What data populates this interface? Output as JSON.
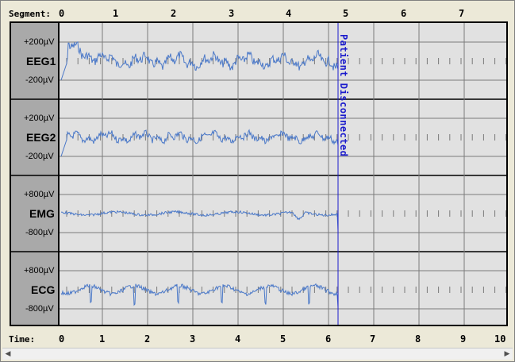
{
  "header": {
    "segment_label": "Segment:",
    "segment_ticks": [
      "0",
      "1",
      "2",
      "3",
      "4",
      "5",
      "6",
      "7"
    ]
  },
  "footer": {
    "time_label": "Time:",
    "time_ticks": [
      "0",
      "1",
      "2",
      "3",
      "4",
      "5",
      "6",
      "10"
    ],
    "time_ticks_all": [
      "0",
      "1",
      "2",
      "3",
      "4",
      "5",
      "6",
      "7",
      "8",
      "9",
      "10"
    ]
  },
  "channels": [
    {
      "name": "EEG1",
      "scale_top": "+200µV",
      "scale_bottom": "-200µV"
    },
    {
      "name": "EEG2",
      "scale_top": "+200µV",
      "scale_bottom": "-200µV"
    },
    {
      "name": "EMG",
      "scale_top": "+800µV",
      "scale_bottom": "-800µV"
    },
    {
      "name": "ECG",
      "scale_top": "+800µV",
      "scale_bottom": "-800µV"
    }
  ],
  "event": {
    "label": "Patient Disconnected",
    "color": "#1a1acc"
  },
  "colors": {
    "trace": "#4a78c8",
    "grid": "#7a7a7a",
    "plot_bg": "#e1e1e1",
    "label_bg": "#a9a9a9"
  },
  "scrollbar": {
    "left_icon": "scroll-left-icon",
    "right_icon": "scroll-right-icon"
  }
}
